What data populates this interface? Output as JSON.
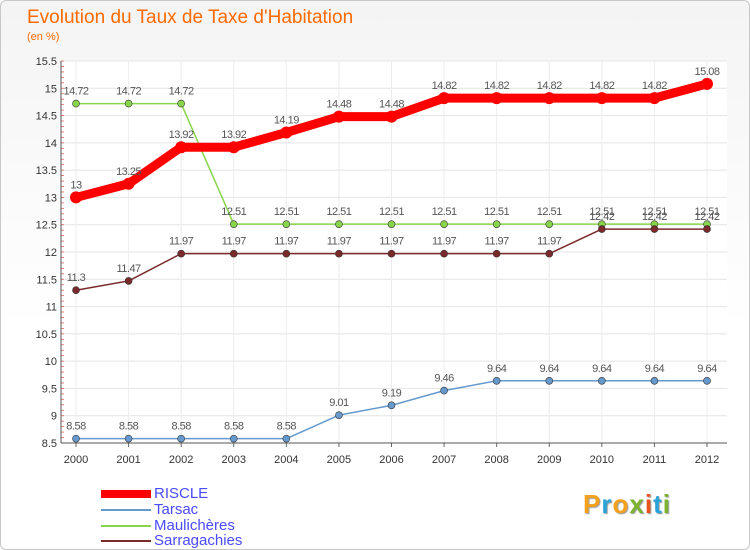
{
  "header": {
    "title": "Evolution du Taux de Taxe d'Habitation",
    "subtitle": "(en %)"
  },
  "logo": {
    "text": "Proxiti",
    "colors": [
      "#f4a11d",
      "#2aa3d8",
      "#f4a11d",
      "#7bb32e",
      "#e8541c",
      "#2aa3d8",
      "#7bb32e"
    ]
  },
  "chart_data": {
    "type": "line",
    "title": "Evolution du Taux de Taxe d'Habitation",
    "subtitle": "(en %)",
    "xlabel": "",
    "ylabel": "(en %)",
    "x": [
      "2000",
      "2001",
      "2002",
      "2003",
      "2004",
      "2005",
      "2006",
      "2007",
      "2008",
      "2009",
      "2010",
      "2011",
      "2012"
    ],
    "ylim": [
      8.5,
      15.5
    ],
    "yticks": [
      "8.5",
      "9",
      "9.5",
      "10",
      "10.5",
      "11",
      "11.5",
      "12",
      "12.5",
      "13",
      "13.5",
      "14",
      "14.5",
      "15",
      "15.5"
    ],
    "grid": true,
    "legend_position": "bottom-left",
    "series": [
      {
        "name": "RISCLE",
        "color": "#ff0000",
        "width": 9,
        "values": [
          13,
          13.25,
          13.92,
          13.92,
          14.19,
          14.48,
          14.48,
          14.82,
          14.82,
          14.82,
          14.82,
          14.82,
          15.08
        ],
        "labels": [
          "13",
          "13.25",
          "13.92",
          "13.92",
          "14.19",
          "14.48",
          "14.48",
          "14.82",
          "14.82",
          "14.82",
          "14.82",
          "14.82",
          "15.08"
        ]
      },
      {
        "name": "Tarsac",
        "color": "#6699cc",
        "width": 1.5,
        "values": [
          8.58,
          8.58,
          8.58,
          8.58,
          8.58,
          9.01,
          9.19,
          9.46,
          9.64,
          9.64,
          9.64,
          9.64,
          9.64
        ],
        "labels": [
          "8.58",
          "8.58",
          "8.58",
          "8.58",
          "8.58",
          "9.01",
          "9.19",
          "9.46",
          "9.64",
          "9.64",
          "9.64",
          "9.64",
          "9.64"
        ]
      },
      {
        "name": "Maulichères",
        "color": "#88d44a",
        "width": 1.5,
        "values": [
          14.72,
          14.72,
          14.72,
          12.51,
          12.51,
          12.51,
          12.51,
          12.51,
          12.51,
          12.51,
          12.51,
          12.51,
          12.51
        ],
        "labels": [
          "14.72",
          "14.72",
          "14.72",
          "12.51",
          "12.51",
          "12.51",
          "12.51",
          "12.51",
          "12.51",
          "12.51",
          "12.51",
          "12.51",
          "12.51"
        ]
      },
      {
        "name": "Sarragachies",
        "color": "#7a2a2a",
        "width": 1.5,
        "values": [
          11.3,
          11.47,
          11.97,
          11.97,
          11.97,
          11.97,
          11.97,
          11.97,
          11.97,
          11.97,
          12.42,
          12.42,
          12.42
        ],
        "labels": [
          "11.3",
          "11.47",
          "11.97",
          "11.97",
          "11.97",
          "11.97",
          "11.97",
          "11.97",
          "11.97",
          "11.97",
          "12.42",
          "12.42",
          "12.42"
        ]
      }
    ]
  }
}
